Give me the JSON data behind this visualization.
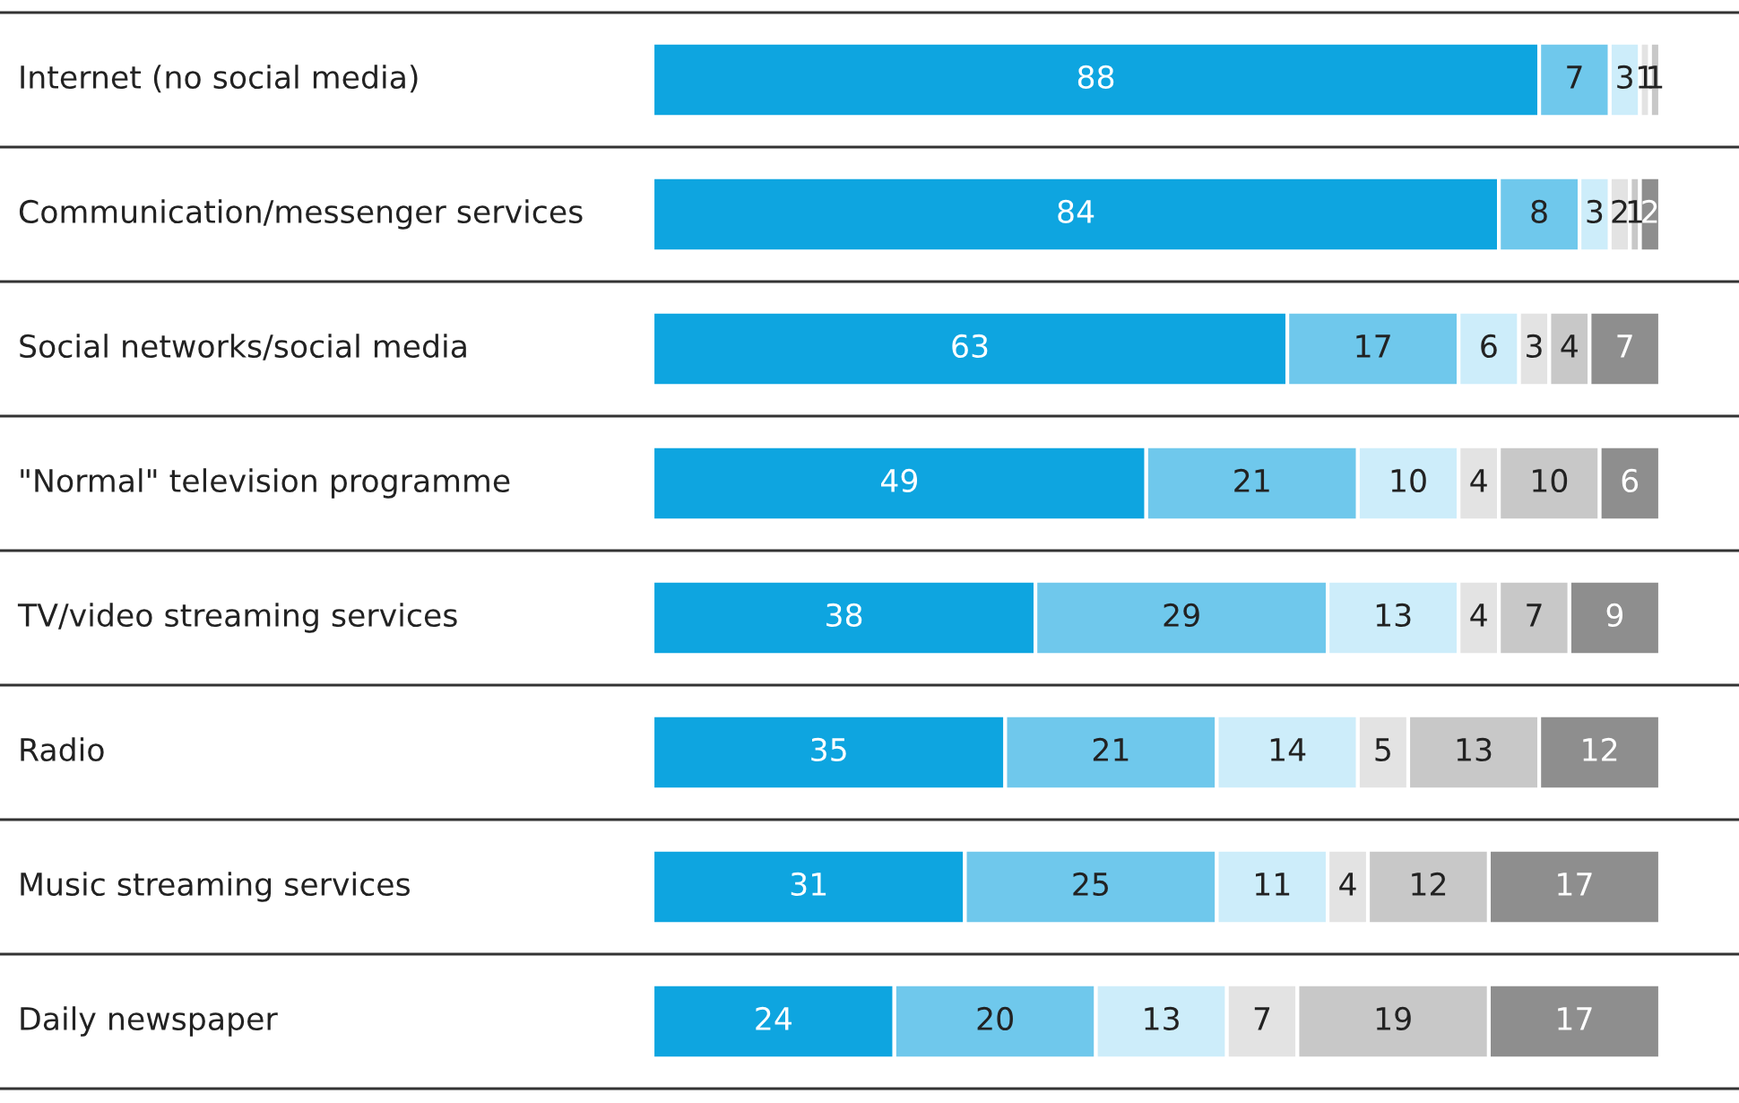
{
  "chart_data": {
    "type": "bar",
    "orientation": "horizontal",
    "stacked": true,
    "data_labels": true,
    "categories": [
      "Internet (no social media)",
      "Communication/messenger services",
      "Social networks/social media",
      "\"Normal\" television programme",
      "TV/video streaming services",
      "Radio",
      "Music streaming services",
      "Daily newspaper"
    ],
    "series": [
      {
        "color": "#0ea5e0",
        "values": [
          88,
          84,
          63,
          49,
          38,
          35,
          31,
          24
        ]
      },
      {
        "color": "#6fc8ec",
        "values": [
          7,
          8,
          17,
          21,
          29,
          21,
          25,
          20
        ]
      },
      {
        "color": "#cdedfa",
        "values": [
          3,
          3,
          6,
          10,
          13,
          14,
          11,
          13
        ]
      },
      {
        "color": "#e3e3e3",
        "values": [
          1,
          2,
          3,
          4,
          4,
          5,
          4,
          7
        ]
      },
      {
        "color": "#c8c8c8",
        "values": [
          1,
          1,
          4,
          10,
          7,
          13,
          12,
          19
        ]
      },
      {
        "color": "#8e8e8e",
        "values": [
          null,
          2,
          7,
          6,
          9,
          12,
          17,
          17
        ]
      }
    ]
  }
}
